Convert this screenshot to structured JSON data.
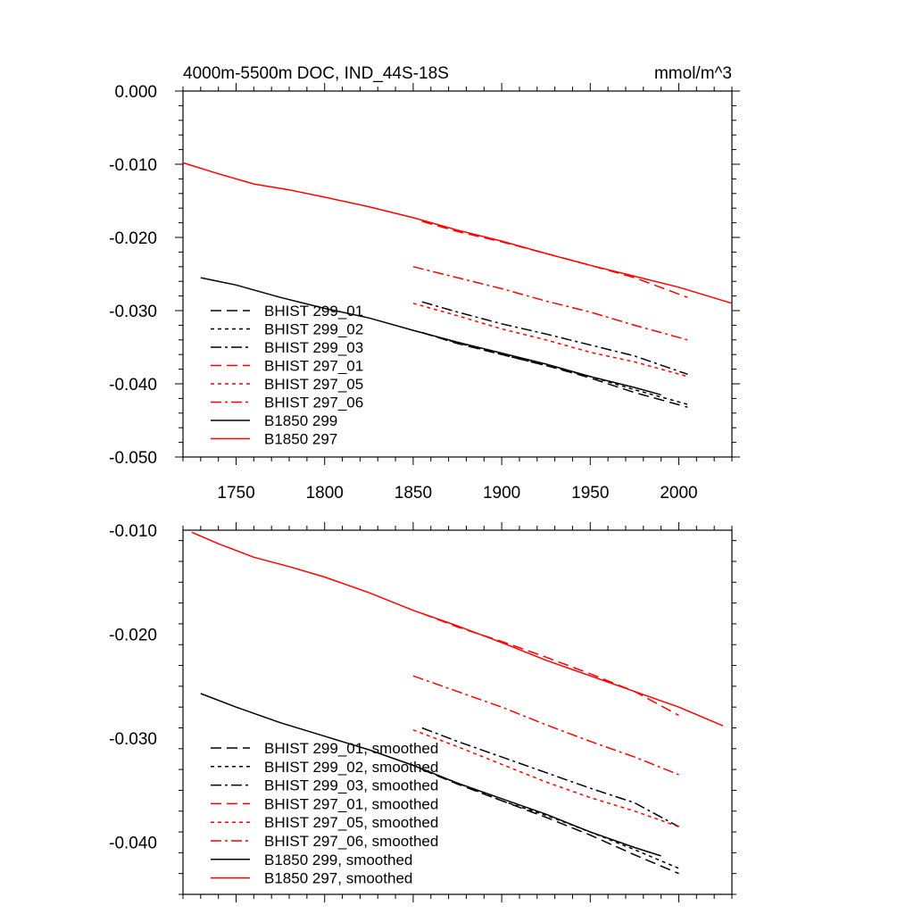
{
  "chart_data": [
    {
      "type": "line",
      "title": "4000m-5500m DOC, IND_44S-18S",
      "units": "mmol/m^3",
      "xlim": [
        1720,
        2030
      ],
      "ylim": [
        -0.05,
        0.0
      ],
      "xticks": [
        1750,
        1800,
        1850,
        1900,
        1950,
        2000
      ],
      "xticklabels": [
        "1750",
        "1800",
        "1850",
        "1900",
        "1950",
        "2000"
      ],
      "yticks": [
        0.0,
        -0.01,
        -0.02,
        -0.03,
        -0.04,
        -0.05
      ],
      "yticklabels": [
        "0.000",
        "-0.010",
        "-0.020",
        "-0.030",
        "-0.040",
        "-0.050"
      ],
      "legend_position": "lower-left",
      "series": [
        {
          "name": "BHIST 299_01",
          "color": "#000000",
          "style": "dash",
          "x": [
            1855,
            1875,
            1900,
            1925,
            1950,
            1975,
            2005
          ],
          "y": [
            -0.033,
            -0.0345,
            -0.036,
            -0.0375,
            -0.0392,
            -0.0412,
            -0.0432
          ]
        },
        {
          "name": "BHIST 299_02",
          "color": "#000000",
          "style": "dot",
          "x": [
            1855,
            1875,
            1900,
            1925,
            1950,
            1975,
            2005
          ],
          "y": [
            -0.033,
            -0.0344,
            -0.036,
            -0.0375,
            -0.039,
            -0.0408,
            -0.0428
          ]
        },
        {
          "name": "BHIST 299_03",
          "color": "#000000",
          "style": "dashdot",
          "x": [
            1855,
            1875,
            1900,
            1925,
            1950,
            1975,
            2005
          ],
          "y": [
            -0.0288,
            -0.0302,
            -0.0318,
            -0.0332,
            -0.0347,
            -0.0362,
            -0.0387
          ]
        },
        {
          "name": "BHIST 297_01",
          "color": "#ff0000",
          "style": "dash",
          "x": [
            1855,
            1875,
            1900,
            1925,
            1950,
            1975,
            2005
          ],
          "y": [
            -0.0178,
            -0.0192,
            -0.0206,
            -0.0222,
            -0.0238,
            -0.0255,
            -0.0282
          ]
        },
        {
          "name": "BHIST 297_05",
          "color": "#ff0000",
          "style": "dot",
          "x": [
            1850,
            1875,
            1900,
            1925,
            1950,
            1975,
            2005
          ],
          "y": [
            -0.029,
            -0.0307,
            -0.0325,
            -0.034,
            -0.0357,
            -0.037,
            -0.039
          ]
        },
        {
          "name": "BHIST 297_06",
          "color": "#ff0000",
          "style": "dashdot",
          "x": [
            1850,
            1875,
            1900,
            1925,
            1950,
            1975,
            2005
          ],
          "y": [
            -0.024,
            -0.0255,
            -0.027,
            -0.0287,
            -0.0302,
            -0.032,
            -0.034
          ]
        },
        {
          "name": "B1850 299",
          "color": "#000000",
          "style": "solid",
          "x": [
            1730,
            1750,
            1775,
            1800,
            1825,
            1850,
            1875,
            1900,
            1925,
            1950,
            1975,
            1990
          ],
          "y": [
            -0.0255,
            -0.0265,
            -0.0282,
            -0.0297,
            -0.031,
            -0.0327,
            -0.0343,
            -0.0358,
            -0.0373,
            -0.039,
            -0.0405,
            -0.0415
          ]
        },
        {
          "name": "B1850 297",
          "color": "#ff0000",
          "style": "solid",
          "x": [
            1720,
            1740,
            1760,
            1780,
            1800,
            1825,
            1850,
            1875,
            1900,
            1925,
            1950,
            1975,
            2000,
            2030
          ],
          "y": [
            -0.0098,
            -0.0113,
            -0.0127,
            -0.0135,
            -0.0145,
            -0.0158,
            -0.0173,
            -0.019,
            -0.0205,
            -0.0222,
            -0.0238,
            -0.0253,
            -0.0268,
            -0.029
          ]
        }
      ]
    },
    {
      "type": "line",
      "xlim": [
        1720,
        2030
      ],
      "ylim": [
        -0.045,
        -0.01
      ],
      "xticks": [
        1750,
        1800,
        1850,
        1900,
        1950,
        2000
      ],
      "xticklabels": [],
      "yticks": [
        -0.01,
        -0.02,
        -0.03,
        -0.04
      ],
      "yticklabels": [
        "-0.010",
        "-0.020",
        "-0.030",
        "-0.040"
      ],
      "legend_position": "lower-left",
      "series": [
        {
          "name": "BHIST 299_01, smoothed",
          "color": "#000000",
          "style": "dash",
          "x": [
            1855,
            1875,
            1900,
            1925,
            1950,
            1975,
            2000
          ],
          "y": [
            -0.033,
            -0.0344,
            -0.036,
            -0.0376,
            -0.0393,
            -0.0412,
            -0.043
          ]
        },
        {
          "name": "BHIST 299_02, smoothed",
          "color": "#000000",
          "style": "dot",
          "x": [
            1855,
            1875,
            1900,
            1925,
            1950,
            1975,
            2000
          ],
          "y": [
            -0.033,
            -0.0343,
            -0.036,
            -0.0374,
            -0.039,
            -0.0407,
            -0.0425
          ]
        },
        {
          "name": "BHIST 299_03, smoothed",
          "color": "#000000",
          "style": "dashdot",
          "x": [
            1855,
            1875,
            1900,
            1925,
            1950,
            1975,
            2000
          ],
          "y": [
            -0.029,
            -0.0303,
            -0.0318,
            -0.0333,
            -0.0348,
            -0.0362,
            -0.0385
          ]
        },
        {
          "name": "BHIST 297_01, smoothed",
          "color": "#ff0000",
          "style": "dash",
          "x": [
            1855,
            1875,
            1900,
            1925,
            1950,
            1975,
            2000
          ],
          "y": [
            -0.018,
            -0.0193,
            -0.0207,
            -0.0222,
            -0.0238,
            -0.0255,
            -0.0278
          ]
        },
        {
          "name": "BHIST 297_05, smoothed",
          "color": "#ff0000",
          "style": "dot",
          "x": [
            1850,
            1875,
            1900,
            1925,
            1950,
            1975,
            2000
          ],
          "y": [
            -0.0292,
            -0.0308,
            -0.0325,
            -0.0342,
            -0.0357,
            -0.037,
            -0.0385
          ]
        },
        {
          "name": "BHIST 297_06, smoothed",
          "color": "#ff0000",
          "style": "dashdot",
          "x": [
            1850,
            1875,
            1900,
            1925,
            1950,
            1975,
            2000
          ],
          "y": [
            -0.024,
            -0.0255,
            -0.027,
            -0.0287,
            -0.0303,
            -0.0318,
            -0.0335
          ]
        },
        {
          "name": "B1850 299, smoothed",
          "color": "#000000",
          "style": "solid",
          "x": [
            1730,
            1750,
            1775,
            1800,
            1825,
            1850,
            1875,
            1900,
            1925,
            1950,
            1975,
            1990
          ],
          "y": [
            -0.0257,
            -0.027,
            -0.0285,
            -0.0298,
            -0.0311,
            -0.0326,
            -0.0343,
            -0.0358,
            -0.0373,
            -0.039,
            -0.0405,
            -0.0413
          ]
        },
        {
          "name": "B1850 297, smoothed",
          "color": "#ff0000",
          "style": "solid",
          "x": [
            1725,
            1740,
            1760,
            1780,
            1800,
            1825,
            1850,
            1875,
            1900,
            1925,
            1950,
            1975,
            2000,
            2025
          ],
          "y": [
            -0.0102,
            -0.0113,
            -0.0126,
            -0.0135,
            -0.0145,
            -0.016,
            -0.0177,
            -0.0192,
            -0.0208,
            -0.0225,
            -0.024,
            -0.0255,
            -0.027,
            -0.0288
          ]
        }
      ]
    }
  ]
}
